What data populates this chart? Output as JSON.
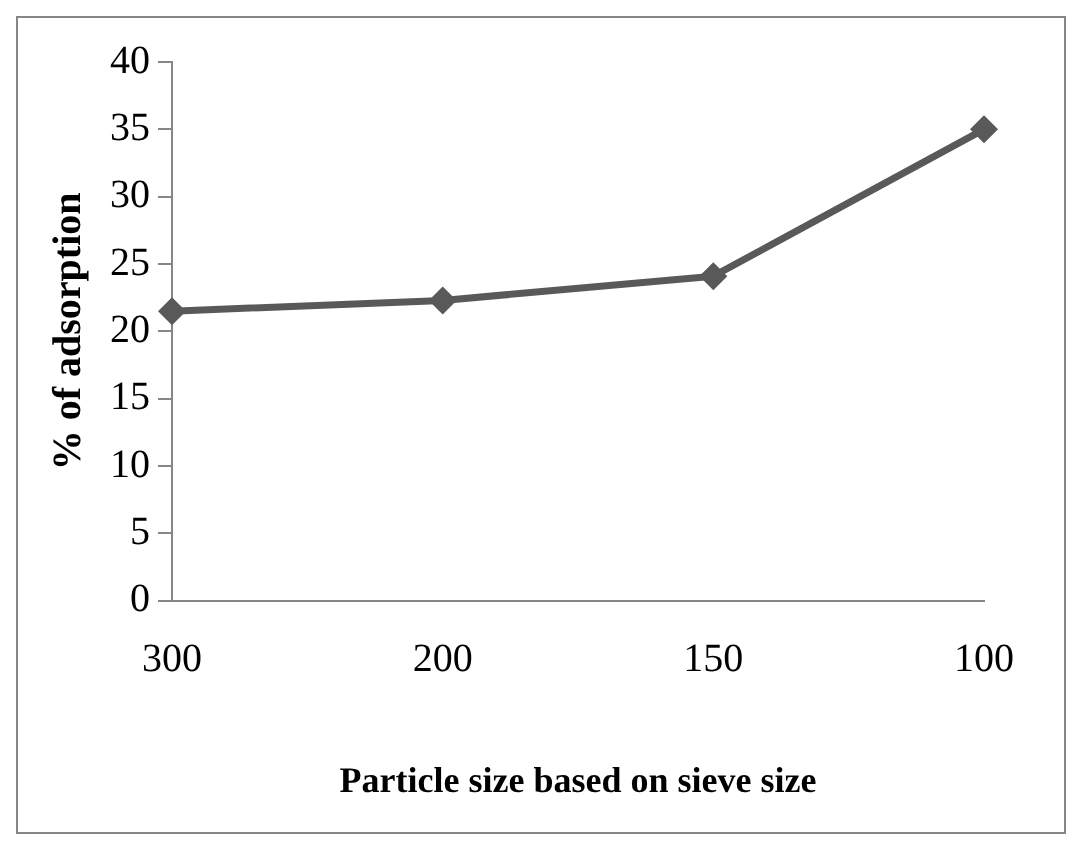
{
  "chart_data": {
    "type": "line",
    "xlabel": "Particle size based on sieve size",
    "ylabel": "% of adsorption",
    "categories": [
      "300",
      "200",
      "150",
      "100"
    ],
    "series": [
      {
        "color": "#595959",
        "values": [
          21.5,
          22.3,
          24.1,
          35
        ]
      }
    ],
    "ylim": [
      0,
      40
    ],
    "yticks": [
      0,
      5,
      10,
      15,
      20,
      25,
      30,
      35,
      40
    ],
    "grid": false,
    "legend": false,
    "marker": "diamond",
    "line_style": "solid"
  }
}
